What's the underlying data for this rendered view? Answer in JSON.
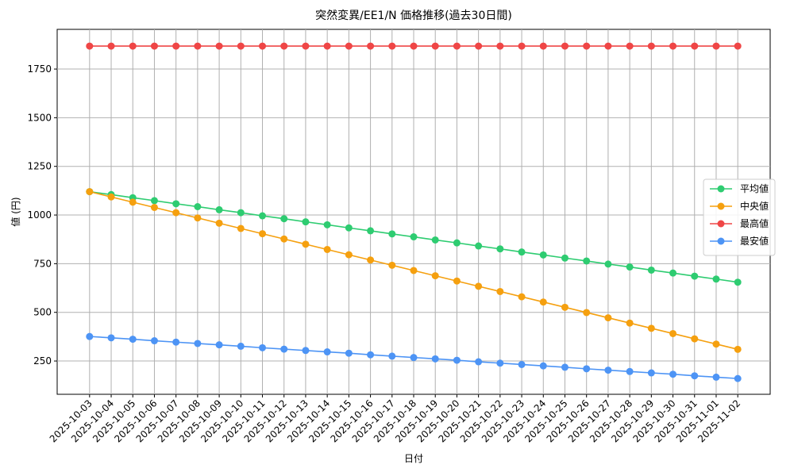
{
  "chart_data": {
    "type": "line",
    "title": "突然変異/EE1/N 価格推移(過去30日間)",
    "x_label": "日付",
    "y_label": "値 (円)",
    "categories": [
      "2025-10-03",
      "2025-10-04",
      "2025-10-05",
      "2025-10-06",
      "2025-10-07",
      "2025-10-08",
      "2025-10-09",
      "2025-10-10",
      "2025-10-11",
      "2025-10-12",
      "2025-10-13",
      "2025-10-14",
      "2025-10-15",
      "2025-10-16",
      "2025-10-17",
      "2025-10-18",
      "2025-10-19",
      "2025-10-20",
      "2025-10-21",
      "2025-10-22",
      "2025-10-23",
      "2025-10-24",
      "2025-10-25",
      "2025-10-26",
      "2025-10-27",
      "2025-10-28",
      "2025-10-29",
      "2025-10-30",
      "2025-10-31",
      "2025-11-01",
      "2025-11-02"
    ],
    "series": [
      {
        "name": "平均値",
        "color": "#2ecc71",
        "values": [
          1120,
          1105,
          1089,
          1074,
          1058,
          1043,
          1027,
          1012,
          996,
          981,
          965,
          950,
          934,
          919,
          903,
          888,
          872,
          857,
          841,
          826,
          810,
          795,
          779,
          764,
          748,
          733,
          717,
          702,
          686,
          671,
          655
        ]
      },
      {
        "name": "中央値",
        "color": "#f5a00f",
        "values": [
          1120,
          1093,
          1066,
          1039,
          1012,
          985,
          958,
          931,
          904,
          877,
          850,
          823,
          796,
          769,
          742,
          715,
          688,
          661,
          634,
          607,
          580,
          553,
          526,
          499,
          472,
          445,
          418,
          391,
          364,
          337,
          310
        ]
      },
      {
        "name": "最高値",
        "color": "#ef4646",
        "values": [
          1868,
          1868,
          1868,
          1868,
          1868,
          1868,
          1868,
          1868,
          1868,
          1868,
          1868,
          1868,
          1868,
          1868,
          1868,
          1868,
          1868,
          1868,
          1868,
          1868,
          1868,
          1868,
          1868,
          1868,
          1868,
          1868,
          1868,
          1868,
          1868,
          1868,
          1868
        ]
      },
      {
        "name": "最安値",
        "color": "#4d94f5",
        "values": [
          376,
          369,
          362,
          354,
          347,
          340,
          333,
          326,
          318,
          311,
          304,
          297,
          290,
          282,
          275,
          268,
          261,
          254,
          246,
          239,
          232,
          225,
          218,
          210,
          203,
          196,
          189,
          182,
          174,
          167,
          160
        ]
      }
    ],
    "ylim": [
      79,
      1954
    ],
    "yticks": [
      250,
      500,
      750,
      1000,
      1250,
      1500,
      1750
    ],
    "grid": true,
    "legend": "right"
  }
}
